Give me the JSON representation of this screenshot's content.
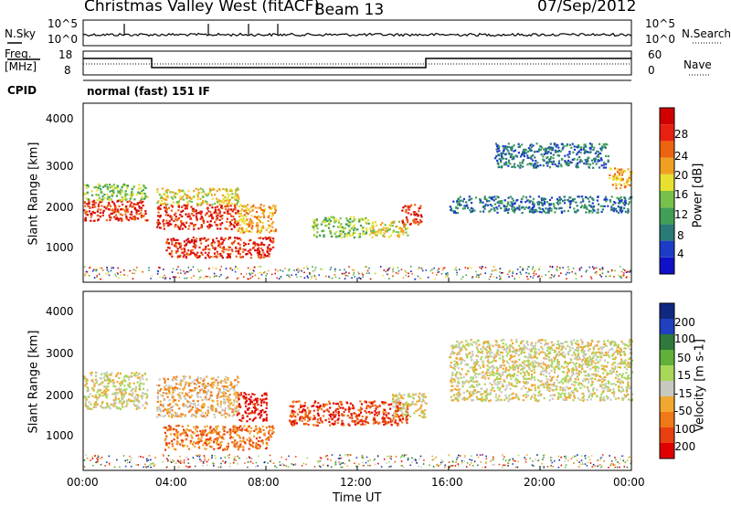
{
  "header": {
    "title": "Christmas Valley West (fitACF)",
    "beam": "Beam 13",
    "date": "07/Sep/2012"
  },
  "panels": {
    "nsky": {
      "left_label": "N.Sky",
      "right_label": "N.Search",
      "left_ticks": [
        "10^5",
        "10^0"
      ],
      "right_ticks": [
        "10^5",
        "10^0"
      ]
    },
    "freq": {
      "left_label_1": "Freq.",
      "left_label_2": "[MHz]",
      "right_label": "Nave",
      "left_ticks": [
        "18",
        "8"
      ],
      "right_ticks": [
        "60",
        "0"
      ]
    },
    "cpid": {
      "label": "CPID",
      "text": "normal (fast) 151 IF"
    }
  },
  "colors": {
    "power": [
      "#1010c8",
      "#1c3cc8",
      "#2a7a78",
      "#3f9f56",
      "#77c04a",
      "#e8e030",
      "#f0a020",
      "#ec6410",
      "#e82010",
      "#d00000"
    ],
    "velocity": [
      "#102880",
      "#2040c0",
      "#2f7a3a",
      "#60b03a",
      "#a8d858",
      "#c8c8c0",
      "#f0a830",
      "#f07818",
      "#e84010",
      "#e00000"
    ]
  },
  "chart_data": [
    {
      "type": "heatmap",
      "name": "power",
      "ylabel": "Slant Range [km]",
      "y_ticks": [
        "4000",
        "3000",
        "2000",
        "1000"
      ],
      "ylim": [
        180,
        4560
      ],
      "colorbar_label": "Power [dB]",
      "colorbar_ticks": [
        "28",
        "24",
        "20",
        "16",
        "12",
        "8",
        "4"
      ],
      "regions": [
        {
          "t0": 0.0,
          "t1": 2.8,
          "r0": 1700,
          "r1": 2200,
          "level": 8
        },
        {
          "t0": 0.0,
          "t1": 2.8,
          "r0": 2200,
          "r1": 2600,
          "level": 4
        },
        {
          "t0": 3.2,
          "t1": 6.8,
          "r0": 1500,
          "r1": 2100,
          "level": 8
        },
        {
          "t0": 3.2,
          "t1": 6.8,
          "r0": 2100,
          "r1": 2500,
          "level": 5
        },
        {
          "t0": 3.6,
          "t1": 8.3,
          "r0": 800,
          "r1": 1300,
          "level": 8
        },
        {
          "t0": 6.7,
          "t1": 8.4,
          "r0": 1400,
          "r1": 2100,
          "level": 6
        },
        {
          "t0": 10.0,
          "t1": 12.5,
          "r0": 1300,
          "r1": 1800,
          "level": 4
        },
        {
          "t0": 12.5,
          "t1": 14.2,
          "r0": 1300,
          "r1": 1700,
          "level": 5
        },
        {
          "t0": 13.9,
          "t1": 14.8,
          "r0": 1600,
          "r1": 2100,
          "level": 8
        },
        {
          "t0": 16.0,
          "t1": 24.0,
          "r0": 1900,
          "r1": 2300,
          "level": 2
        },
        {
          "t0": 18.0,
          "t1": 23.0,
          "r0": 3000,
          "r1": 3600,
          "level": 2
        },
        {
          "t0": 23.0,
          "t1": 24.0,
          "r0": 2500,
          "r1": 3000,
          "level": 6
        }
      ]
    },
    {
      "type": "heatmap",
      "name": "velocity",
      "ylabel": "Slant Range [km]",
      "y_ticks": [
        "4000",
        "3000",
        "2000",
        "1000"
      ],
      "ylim": [
        180,
        4560
      ],
      "colorbar_label": "Velocity [m s-1]",
      "colorbar_ticks": [
        "200",
        "100",
        "50",
        "15",
        "-15",
        "-50",
        "-100",
        "-200"
      ],
      "regions": [
        {
          "t0": 0.0,
          "t1": 2.8,
          "r0": 1700,
          "r1": 2600,
          "level": 5
        },
        {
          "t0": 3.2,
          "t1": 6.8,
          "r0": 1500,
          "r1": 2500,
          "level": 6
        },
        {
          "t0": 3.5,
          "t1": 8.3,
          "r0": 700,
          "r1": 1300,
          "level": 7
        },
        {
          "t0": 6.7,
          "t1": 8.0,
          "r0": 1400,
          "r1": 2100,
          "level": 9
        },
        {
          "t0": 9.0,
          "t1": 14.2,
          "r0": 1300,
          "r1": 1900,
          "level": 8
        },
        {
          "t0": 13.5,
          "t1": 15.0,
          "r0": 1500,
          "r1": 2100,
          "level": 5
        },
        {
          "t0": 16.0,
          "t1": 24.0,
          "r0": 1900,
          "r1": 3400,
          "level": 5
        }
      ],
      "xlabel": "Time UT",
      "x_ticks": [
        "00:00",
        "04:00",
        "08:00",
        "12:00",
        "16:00",
        "20:00",
        "00:00"
      ],
      "xlim": [
        0,
        24
      ]
    }
  ]
}
